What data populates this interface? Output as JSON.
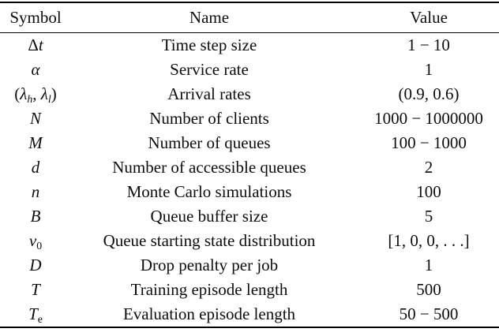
{
  "colors": {
    "background": "#ffffff",
    "text": "#0d0d0d",
    "rule": "#000000"
  },
  "table": {
    "columns": [
      "Symbol",
      "Name",
      "Value"
    ],
    "rows": [
      {
        "symbol": [
          {
            "t": "Δ",
            "s": "up"
          },
          {
            "t": "t",
            "s": "it"
          }
        ],
        "name": "Time step size",
        "value": "1 − 10"
      },
      {
        "symbol": [
          {
            "t": "α",
            "s": "it"
          }
        ],
        "name": "Service rate",
        "value": "1"
      },
      {
        "symbol": [
          {
            "t": "(",
            "s": "up"
          },
          {
            "t": "λ",
            "s": "it"
          },
          {
            "t": "h",
            "s": "itsub"
          },
          {
            "t": ", ",
            "s": "up"
          },
          {
            "t": "λ",
            "s": "it"
          },
          {
            "t": "l",
            "s": "itsub"
          },
          {
            "t": ")",
            "s": "up"
          }
        ],
        "name": "Arrival rates",
        "value": "(0.9, 0.6)"
      },
      {
        "symbol": [
          {
            "t": "N",
            "s": "it"
          }
        ],
        "name": "Number of clients",
        "value": "1000 − 1000000"
      },
      {
        "symbol": [
          {
            "t": "M",
            "s": "it"
          }
        ],
        "name": "Number of queues",
        "value": "100 − 1000"
      },
      {
        "symbol": [
          {
            "t": "d",
            "s": "it"
          }
        ],
        "name": "Number of accessible queues",
        "value": "2"
      },
      {
        "symbol": [
          {
            "t": "n",
            "s": "it"
          }
        ],
        "name": "Monte Carlo simulations",
        "value": "100"
      },
      {
        "symbol": [
          {
            "t": "B",
            "s": "it"
          }
        ],
        "name": "Queue buffer size",
        "value": "5"
      },
      {
        "symbol": [
          {
            "t": "ν",
            "s": "it"
          },
          {
            "t": "0",
            "s": "upsub"
          }
        ],
        "name": "Queue starting state distribution",
        "value": "[1, 0, 0, . . .]"
      },
      {
        "symbol": [
          {
            "t": "D",
            "s": "it"
          }
        ],
        "name": "Drop penalty per job",
        "value": "1"
      },
      {
        "symbol": [
          {
            "t": "T",
            "s": "it"
          }
        ],
        "name": "Training episode length",
        "value": "500"
      },
      {
        "symbol": [
          {
            "t": "T",
            "s": "it"
          },
          {
            "t": "e",
            "s": "upsub"
          }
        ],
        "name": "Evaluation episode length",
        "value": "50 − 500"
      }
    ]
  }
}
